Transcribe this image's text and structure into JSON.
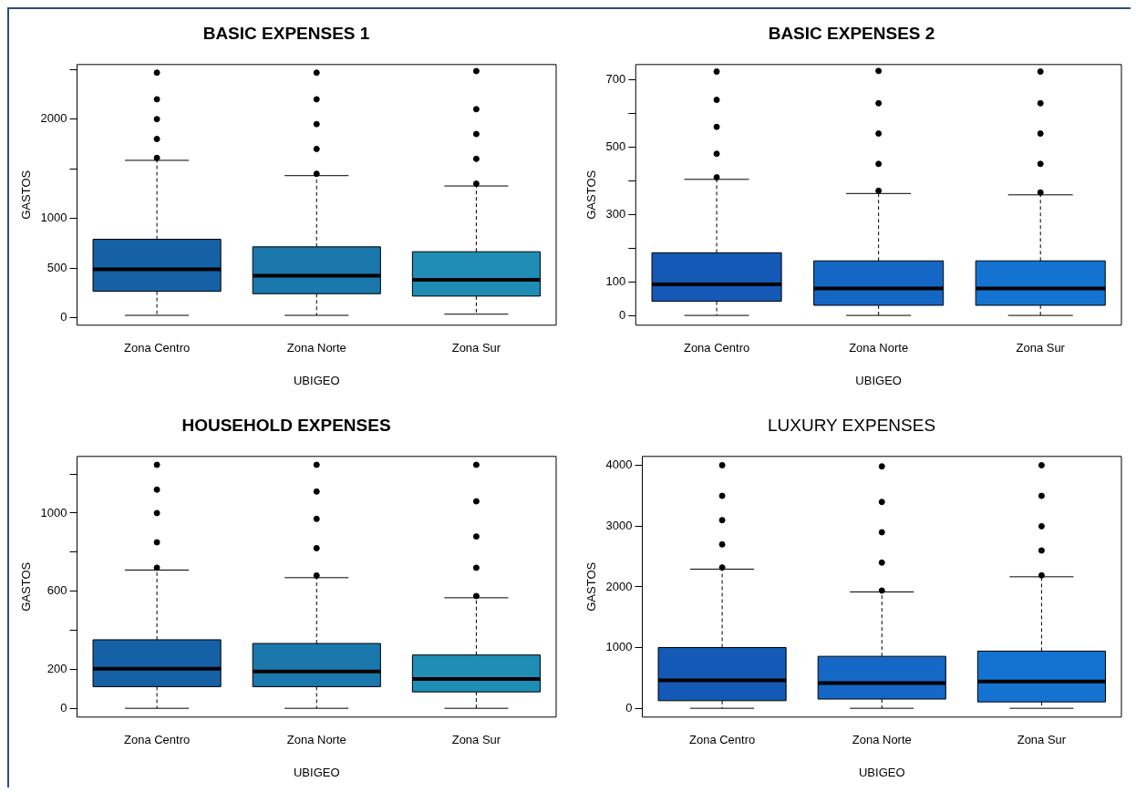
{
  "chart_data": [
    {
      "type": "box",
      "title": "BASIC EXPENSES 1",
      "xlabel": "UBIGEO",
      "ylabel": "GASTOS",
      "categories": [
        "Zona Centro",
        "Zona Norte",
        "Zona Sur"
      ],
      "colors": [
        "#1660a5",
        "#1b78ad",
        "#1f8db5"
      ],
      "ylim": [
        -75,
        2550
      ],
      "yticks": [
        0,
        500,
        1000,
        {
          "value": 1500,
          "label": null
        },
        2000,
        {
          "value": 2500,
          "label": null
        }
      ],
      "grid": false,
      "legend": false,
      "marker": "circle",
      "boxes": [
        {
          "low": 24,
          "q1": 266,
          "median": 488,
          "q3": 790,
          "high": 1585,
          "outliers": [
            1610,
            1800,
            2000,
            2200,
            2468
          ]
        },
        {
          "low": 24,
          "q1": 242,
          "median": 423,
          "q3": 714,
          "high": 1431,
          "outliers": [
            1450,
            1700,
            1950,
            2200,
            2468
          ]
        },
        {
          "low": 36,
          "q1": 218,
          "median": 383,
          "q3": 665,
          "high": 1327,
          "outliers": [
            1350,
            1600,
            1850,
            2100,
            2484
          ]
        }
      ]
    },
    {
      "type": "box",
      "title": "BASIC EXPENSES 2",
      "xlabel": "UBIGEO",
      "ylabel": "GASTOS",
      "categories": [
        "Zona Centro",
        "Zona Norte",
        "Zona Sur"
      ],
      "colors": [
        "#1459b5",
        "#1567c5",
        "#1473d1"
      ],
      "ylim": [
        -29,
        745
      ],
      "yticks": [
        0,
        100,
        {
          "value": 200,
          "label": null
        },
        300,
        {
          "value": 400,
          "label": null
        },
        500,
        {
          "value": 600,
          "label": null
        },
        700
      ],
      "grid": false,
      "legend": false,
      "marker": "circle",
      "boxes": [
        {
          "low": 0,
          "q1": 42,
          "median": 92,
          "q3": 186,
          "high": 404,
          "outliers": [
            410,
            480,
            560,
            640,
            724
          ]
        },
        {
          "low": 0,
          "q1": 30,
          "median": 80,
          "q3": 162,
          "high": 362,
          "outliers": [
            370,
            450,
            540,
            630,
            726
          ]
        },
        {
          "low": 0,
          "q1": 30,
          "median": 80,
          "q3": 162,
          "high": 358,
          "outliers": [
            365,
            450,
            540,
            630,
            724
          ]
        }
      ]
    },
    {
      "type": "box",
      "title": "HOUSEHOLD EXPENSES",
      "xlabel": "UBIGEO",
      "ylabel": "GASTOS",
      "categories": [
        "Zona Centro",
        "Zona Norte",
        "Zona Sur"
      ],
      "colors": [
        "#1660a5",
        "#1b78ad",
        "#1f8db5"
      ],
      "ylim": [
        -45,
        1290
      ],
      "yticks": [
        0,
        200,
        {
          "value": 400,
          "label": null
        },
        600,
        {
          "value": 800,
          "label": null
        },
        1000,
        {
          "value": 1200,
          "label": null
        }
      ],
      "grid": false,
      "legend": false,
      "marker": "circle",
      "boxes": [
        {
          "low": 0,
          "q1": 111,
          "median": 203,
          "q3": 351,
          "high": 708,
          "outliers": [
            720,
            850,
            1000,
            1120,
            1247
          ]
        },
        {
          "low": 0,
          "q1": 111,
          "median": 189,
          "q3": 332,
          "high": 669,
          "outliers": [
            680,
            820,
            970,
            1110,
            1247
          ]
        },
        {
          "low": 0,
          "q1": 84,
          "median": 150,
          "q3": 273,
          "high": 566,
          "outliers": [
            575,
            720,
            880,
            1060,
            1247
          ]
        }
      ]
    },
    {
      "type": "box",
      "title": "LUXURY EXPENSES",
      "xlabel": "UBIGEO",
      "ylabel": "GASTOS",
      "categories": [
        "Zona Centro",
        "Zona Norte",
        "Zona Sur"
      ],
      "colors": [
        "#1459b5",
        "#1567c5",
        "#1473d1"
      ],
      "ylim": [
        -145,
        4150
      ],
      "yticks": [
        0,
        1000,
        2000,
        3000,
        4000
      ],
      "grid": false,
      "legend": false,
      "marker": "circle",
      "boxes": [
        {
          "low": 0,
          "q1": 125,
          "median": 461,
          "q3": 1001,
          "high": 2293,
          "outliers": [
            2320,
            2700,
            3100,
            3500,
            4005
          ]
        },
        {
          "low": 0,
          "q1": 152,
          "median": 415,
          "q3": 856,
          "high": 1917,
          "outliers": [
            1940,
            2400,
            2900,
            3400,
            3986
          ]
        },
        {
          "low": 0,
          "q1": 105,
          "median": 441,
          "q3": 942,
          "high": 2167,
          "outliers": [
            2190,
            2600,
            3000,
            3500,
            4005
          ]
        }
      ]
    }
  ]
}
